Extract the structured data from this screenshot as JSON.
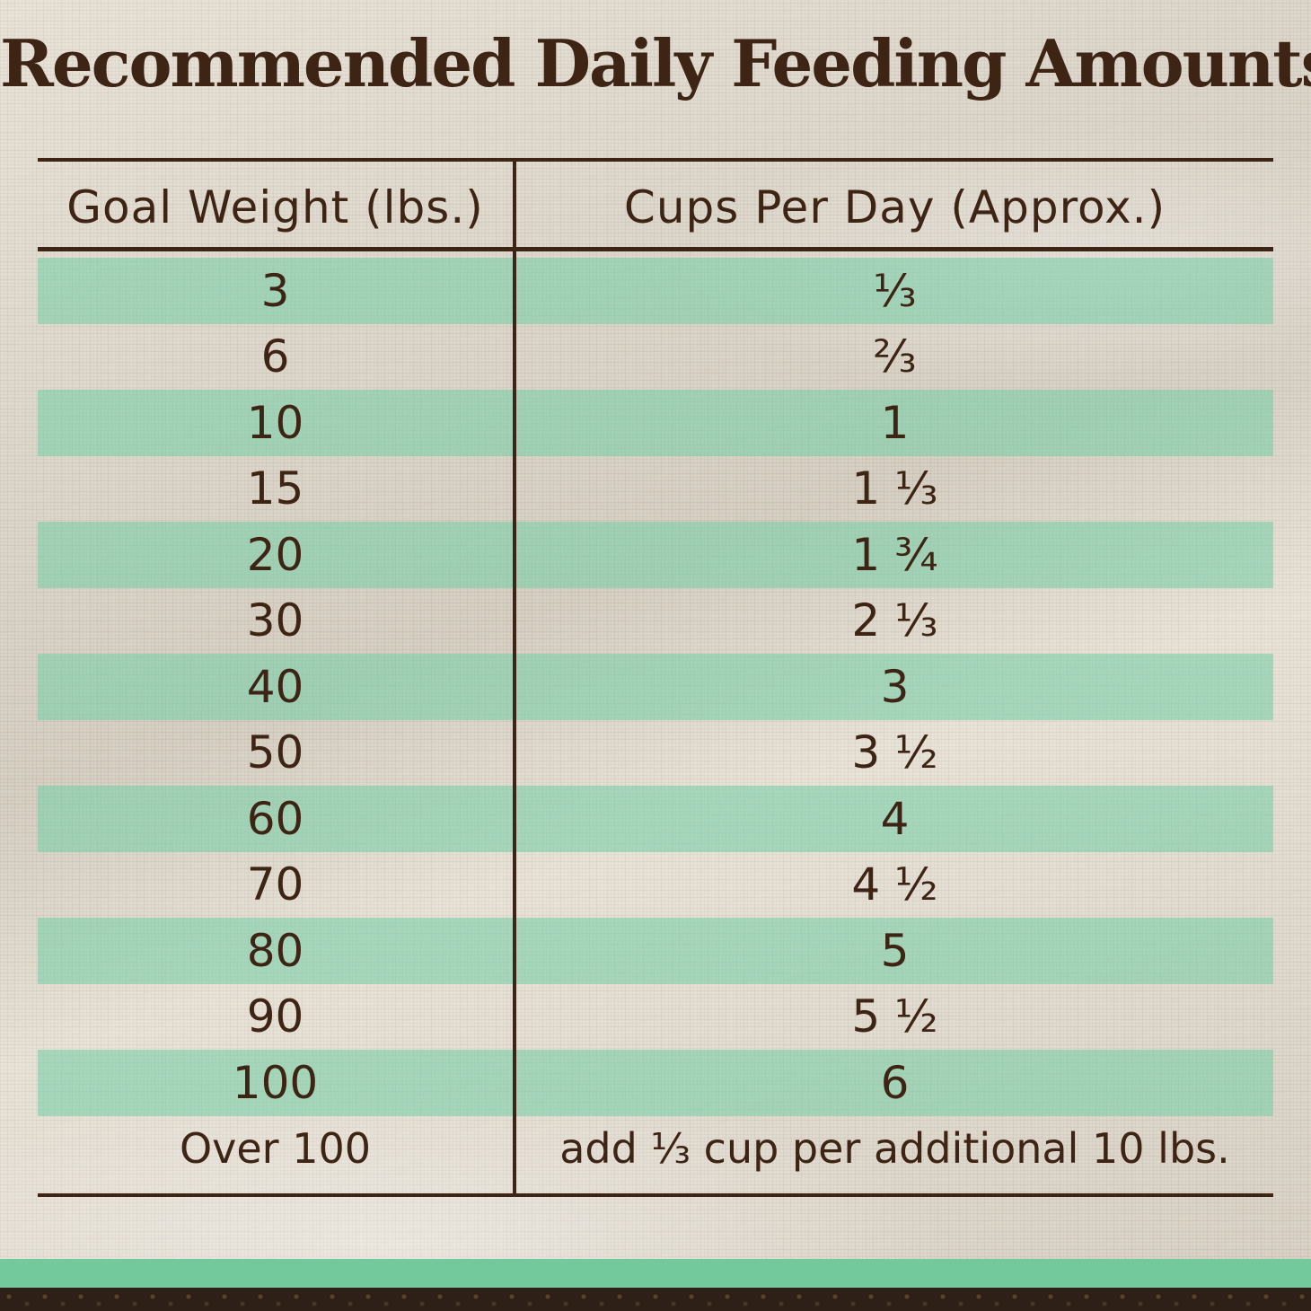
{
  "title": "Recommended Daily Feeding Amounts:",
  "table": {
    "headers": [
      "Goal Weight (lbs.)",
      "Cups Per Day (Approx.)"
    ],
    "rows": [
      [
        "3",
        "⅓"
      ],
      [
        "6",
        "⅔"
      ],
      [
        "10",
        "1"
      ],
      [
        "15",
        "1 ⅓"
      ],
      [
        "20",
        "1 ¾"
      ],
      [
        "30",
        "2 ⅓"
      ],
      [
        "40",
        "3"
      ],
      [
        "50",
        "3 ½"
      ],
      [
        "60",
        "4"
      ],
      [
        "70",
        "4 ½"
      ],
      [
        "80",
        "5"
      ],
      [
        "90",
        "5 ½"
      ],
      [
        "100",
        "6"
      ],
      [
        "Over 100",
        "add ⅓ cup per additional 10 lbs."
      ]
    ]
  },
  "colors": {
    "text": "#3d2415",
    "row_stripe": "#7ecea8",
    "footer_band": "#74c99c"
  }
}
